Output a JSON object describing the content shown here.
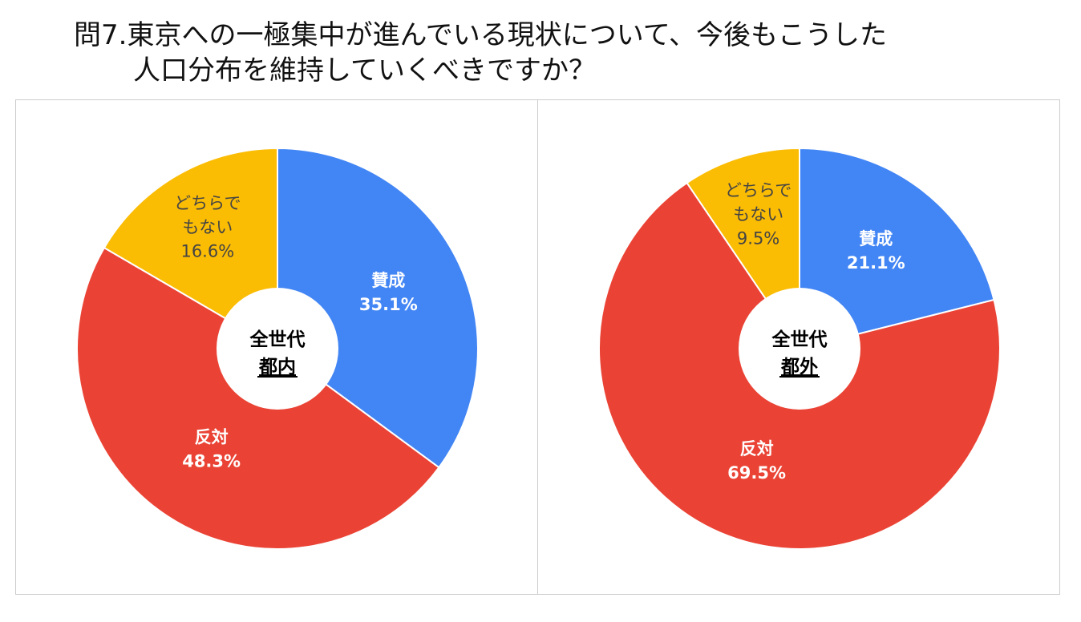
{
  "title": {
    "line1": "問7.東京への一極集中が進んでいる現状について、今後もこうした",
    "line2": "人口分布を維持していくべきですか？"
  },
  "colors": {
    "agree": "#4285F4",
    "disagree": "#EA4335",
    "neither": "#FBBC04",
    "center": "#FFFFFF",
    "agree_text": "#FFFFFF",
    "disagree_text": "#FFFFFF",
    "neither_text": "#444444"
  },
  "chart_data": [
    {
      "type": "pie",
      "center_label": [
        "全世代",
        "都内"
      ],
      "slices": [
        {
          "label": "賛成",
          "value": 35.1,
          "display": "35.1%"
        },
        {
          "label": "反対",
          "value": 48.3,
          "display": "48.3%"
        },
        {
          "label": "どちらでもない",
          "value": 16.6,
          "display": "16.6%"
        }
      ]
    },
    {
      "type": "pie",
      "center_label": [
        "全世代",
        "都外"
      ],
      "slices": [
        {
          "label": "賛成",
          "value": 21.1,
          "display": "21.1%"
        },
        {
          "label": "反対",
          "value": 69.5,
          "display": "69.5%"
        },
        {
          "label": "どちらでもない",
          "value": 9.5,
          "display": "9.5%"
        }
      ]
    }
  ]
}
